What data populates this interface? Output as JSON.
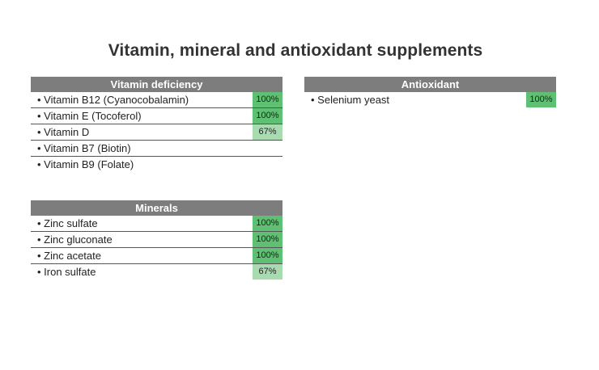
{
  "title": "Vitamin, mineral and antioxidant supplements",
  "colors": {
    "header_bg": "#7d7d7d",
    "pct_full": "#5fbf72",
    "pct_partial": "#a8dcb0"
  },
  "vitamin_deficiency": {
    "header": "Vitamin deficiency",
    "rows": [
      {
        "label": "• Vitamin B12 (Cyanocobalamin)",
        "pct": "100%",
        "level": 1.0
      },
      {
        "label": "• Vitamin E (Tocoferol)",
        "pct": "100%",
        "level": 1.0
      },
      {
        "label": "• Vitamin D",
        "pct": "67%",
        "level": 0.67
      },
      {
        "label": "• Vitamin B7 (Biotin)",
        "pct": "",
        "level": 0
      },
      {
        "label": "• Vitamin B9 (Folate)",
        "pct": "",
        "level": 0
      }
    ]
  },
  "minerals": {
    "header": "Minerals",
    "rows": [
      {
        "label": "• Zinc sulfate",
        "pct": "100%",
        "level": 1.0
      },
      {
        "label": "• Zinc gluconate",
        "pct": "100%",
        "level": 1.0
      },
      {
        "label": "• Zinc acetate",
        "pct": "100%",
        "level": 1.0
      },
      {
        "label": "• Iron sulfate",
        "pct": "67%",
        "level": 0.67
      }
    ]
  },
  "antioxidant": {
    "header": "Antioxidant",
    "rows": [
      {
        "label": "• Selenium yeast",
        "pct": "100%",
        "level": 1.0
      }
    ]
  }
}
